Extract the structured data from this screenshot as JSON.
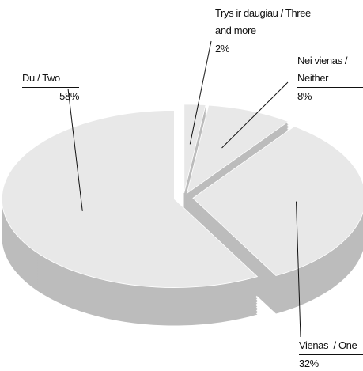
{
  "chart_data": {
    "type": "pie3d",
    "categories": [
      "Trys ir daugiau / Three and more",
      "Nei vienas / Neither",
      "Vienas  / One",
      "Du / Two"
    ],
    "values": [
      2,
      8,
      32,
      58
    ],
    "value_labels": [
      "2%",
      "8%",
      "32%",
      "58%"
    ],
    "color": "#e8e8e8",
    "side_color": "#bcbcbc"
  }
}
